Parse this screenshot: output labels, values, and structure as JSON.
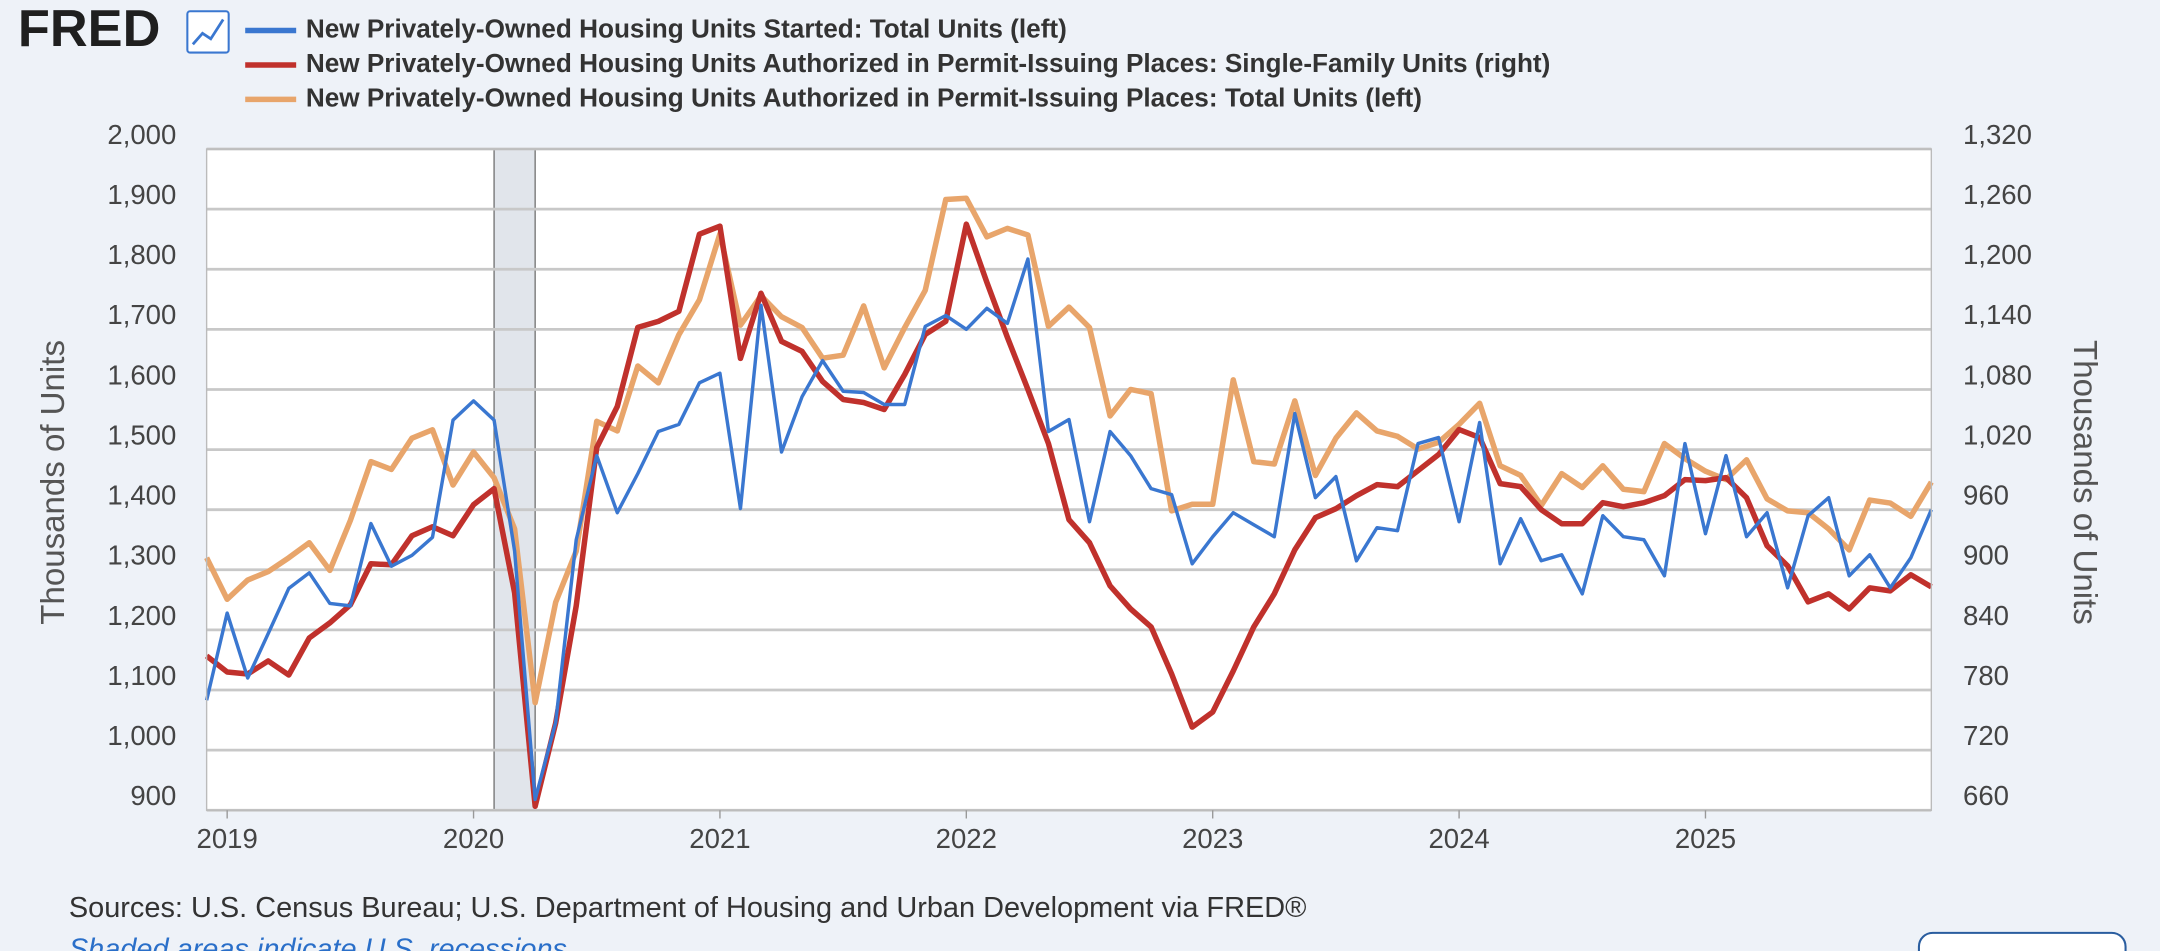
{
  "header": {
    "logo": "FRED"
  },
  "chart_data": {
    "type": "line",
    "x": [
      "2018-12",
      "2019-01",
      "2019-02",
      "2019-03",
      "2019-04",
      "2019-05",
      "2019-06",
      "2019-07",
      "2019-08",
      "2019-09",
      "2019-10",
      "2019-11",
      "2019-12",
      "2020-01",
      "2020-02",
      "2020-03",
      "2020-04",
      "2020-05",
      "2020-06",
      "2020-07",
      "2020-08",
      "2020-09",
      "2020-10",
      "2020-11",
      "2020-12",
      "2021-01",
      "2021-02",
      "2021-03",
      "2021-04",
      "2021-05",
      "2021-06",
      "2021-07",
      "2021-08",
      "2021-09",
      "2021-10",
      "2021-11",
      "2021-12",
      "2022-01",
      "2022-02",
      "2022-03",
      "2022-04",
      "2022-05",
      "2022-06",
      "2022-07",
      "2022-08",
      "2022-09",
      "2022-10",
      "2022-11",
      "2022-12",
      "2023-01",
      "2023-02",
      "2023-03",
      "2023-04",
      "2023-05",
      "2023-06",
      "2023-07",
      "2023-08",
      "2023-09",
      "2023-10",
      "2023-11",
      "2023-12",
      "2024-01",
      "2024-02",
      "2024-03",
      "2024-04",
      "2024-05",
      "2024-06",
      "2024-07",
      "2024-08",
      "2024-09",
      "2024-10",
      "2024-11",
      "2024-12",
      "2025-01",
      "2025-02",
      "2025-03",
      "2025-04",
      "2025-05",
      "2025-06",
      "2025-07",
      "2025-08",
      "2025-09",
      "2025-10",
      "2025-11",
      "2025-12"
    ],
    "series": [
      {
        "name": "New Privately-Owned Housing Units Started: Total Units (left)",
        "color": "#3a77d0",
        "axis": "y",
        "width": 2.5,
        "values": [
          1083,
          1228,
          1120,
          1194,
          1269,
          1295,
          1244,
          1240,
          1377,
          1306,
          1324,
          1354,
          1549,
          1581,
          1549,
          1331,
          918,
          1046,
          1350,
          1490,
          1395,
          1460,
          1530,
          1542,
          1611,
          1627,
          1402,
          1740,
          1496,
          1588,
          1648,
          1597,
          1595,
          1575,
          1575,
          1705,
          1723,
          1700,
          1735,
          1710,
          1817,
          1530,
          1550,
          1380,
          1530,
          1490,
          1435,
          1425,
          1310,
          1355,
          1395,
          1375,
          1355,
          1560,
          1420,
          1455,
          1315,
          1370,
          1365,
          1510,
          1520,
          1380,
          1545,
          1310,
          1385,
          1315,
          1325,
          1260,
          1390,
          1355,
          1350,
          1290,
          1510,
          1360,
          1490,
          1355,
          1395,
          1270,
          1390,
          1420,
          1290,
          1325,
          1270,
          1320,
          1400
        ]
      },
      {
        "name": "New Privately-Owned Housing Units Authorized in Permit-Issuing Places: Single-Family Units (right)",
        "color": "#c0312c",
        "axis": "y2",
        "width": 4,
        "values": [
          814,
          798,
          796,
          809,
          795,
          832,
          847,
          865,
          906,
          905,
          934,
          943,
          934,
          965,
          981,
          877,
          664,
          747,
          864,
          1022,
          1063,
          1142,
          1148,
          1158,
          1235,
          1243,
          1111,
          1176,
          1128,
          1118,
          1088,
          1070,
          1067,
          1060,
          1095,
          1135,
          1148,
          1245,
          1187,
          1132,
          1080,
          1026,
          950,
          927,
          884,
          861,
          843,
          796,
          743,
          758,
          799,
          843,
          876,
          920,
          952,
          961,
          974,
          985,
          983,
          999,
          1015,
          1040,
          1032,
          986,
          983,
          960,
          946,
          946,
          967,
          963,
          967,
          974,
          990,
          989,
          992,
          972,
          924,
          904,
          868,
          876,
          861,
          882,
          879,
          895,
          883
        ]
      },
      {
        "name": "New Privately-Owned Housing Units Authorized in Permit-Issuing Places: Total Units (left)",
        "color": "#e8a56b",
        "axis": "y",
        "width": 4,
        "values": [
          1320,
          1251,
          1283,
          1297,
          1320,
          1345,
          1299,
          1382,
          1480,
          1467,
          1519,
          1533,
          1441,
          1496,
          1453,
          1368,
          1079,
          1246,
          1331,
          1547,
          1531,
          1639,
          1611,
          1691,
          1749,
          1859,
          1707,
          1756,
          1721,
          1703,
          1652,
          1657,
          1739,
          1636,
          1703,
          1765,
          1916,
          1918,
          1854,
          1868,
          1857,
          1705,
          1737,
          1703,
          1556,
          1600,
          1593,
          1398,
          1409,
          1409,
          1616,
          1480,
          1476,
          1581,
          1457,
          1519,
          1561,
          1531,
          1522,
          1501,
          1512,
          1542,
          1577,
          1473,
          1457,
          1407,
          1460,
          1437,
          1473,
          1434,
          1430,
          1510,
          1485,
          1464,
          1450,
          1483,
          1418,
          1398,
          1395,
          1368,
          1333,
          1416,
          1411,
          1389,
          1446
        ]
      }
    ],
    "xlim": [
      "2018-12",
      "2025-12"
    ],
    "xticks": [
      {
        "value": "2019-01",
        "label": "2019"
      },
      {
        "value": "2020-01",
        "label": "2020"
      },
      {
        "value": "2021-01",
        "label": "2021"
      },
      {
        "value": "2022-01",
        "label": "2022"
      },
      {
        "value": "2023-01",
        "label": "2023"
      },
      {
        "value": "2024-01",
        "label": "2024"
      },
      {
        "value": "2025-01",
        "label": "2025"
      }
    ],
    "ylim": [
      900,
      2000
    ],
    "yticks": [
      900,
      {
        "value": 1000,
        "label": "1,000"
      },
      {
        "value": 1100,
        "label": "1,100"
      },
      {
        "value": 1200,
        "label": "1,200"
      },
      {
        "value": 1300,
        "label": "1,300"
      },
      {
        "value": 1400,
        "label": "1,400"
      },
      {
        "value": 1500,
        "label": "1,500"
      },
      {
        "value": 1600,
        "label": "1,600"
      },
      {
        "value": 1700,
        "label": "1,700"
      },
      {
        "value": 1800,
        "label": "1,800"
      },
      {
        "value": 1900,
        "label": "1,900"
      },
      {
        "value": 2000,
        "label": "2,000"
      }
    ],
    "y2lim": [
      660,
      1320
    ],
    "y2ticks": [
      660,
      720,
      780,
      840,
      900,
      960,
      {
        "value": 1020,
        "label": "1,020"
      },
      {
        "value": 1080,
        "label": "1,080"
      },
      {
        "value": 1140,
        "label": "1,140"
      },
      {
        "value": 1200,
        "label": "1,200"
      },
      {
        "value": 1260,
        "label": "1,260"
      },
      {
        "value": 1320,
        "label": "1,320"
      }
    ],
    "y_label": "Thousands of Units",
    "y2_label": "Thousands of Units",
    "grid": true,
    "recessions": [
      {
        "start": "2020-02",
        "end": "2020-04"
      }
    ]
  },
  "footer": {
    "source": "Sources: U.S. Census Bureau; U.S. Department of Housing and Urban Development via FRED®",
    "note": "Shaded areas indicate U.S. recessions."
  }
}
